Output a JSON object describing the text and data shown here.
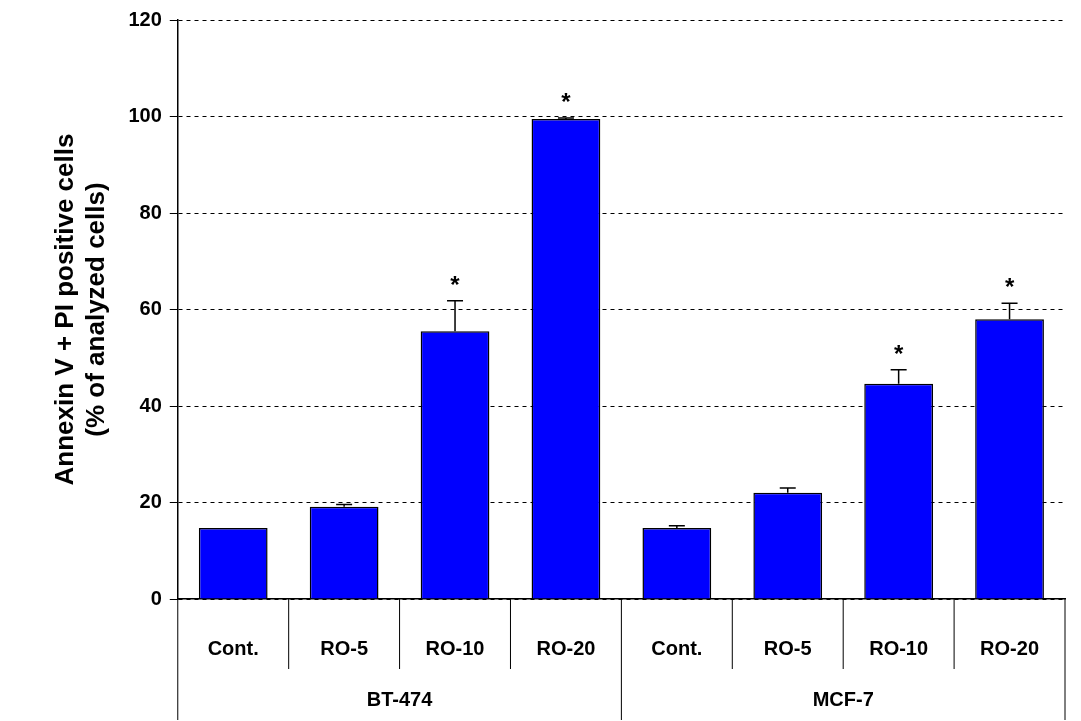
{
  "chart_data": {
    "type": "bar",
    "ylabel": "Annexin V + PI positive cells\n(% of analyzed cells)",
    "categories": [
      "Cont.",
      "RO-5",
      "RO-10",
      "RO-20",
      "Cont.",
      "RO-5",
      "RO-10",
      "RO-20"
    ],
    "values": [
      14.7,
      19.1,
      55.5,
      99.5,
      14.7,
      22.0,
      44.6,
      58.0
    ],
    "errors": [
      null,
      [
        19.1,
        19.6
      ],
      [
        55.5,
        61.8
      ],
      [
        99.5,
        99.7
      ],
      [
        14.7,
        15.2
      ],
      [
        22.0,
        23.0
      ],
      [
        44.6,
        47.5
      ],
      [
        58.0,
        61.3
      ]
    ],
    "value_labels": [
      null,
      null,
      "*",
      "*",
      null,
      null,
      "*",
      "*"
    ],
    "color": "#0000ff",
    "ylim": [
      0,
      120
    ],
    "yticks": [
      0,
      20,
      40,
      60,
      80,
      100,
      120
    ],
    "grid": "y",
    "legend": false,
    "annotations": [
      "BT-474",
      "MCF-7"
    ]
  }
}
